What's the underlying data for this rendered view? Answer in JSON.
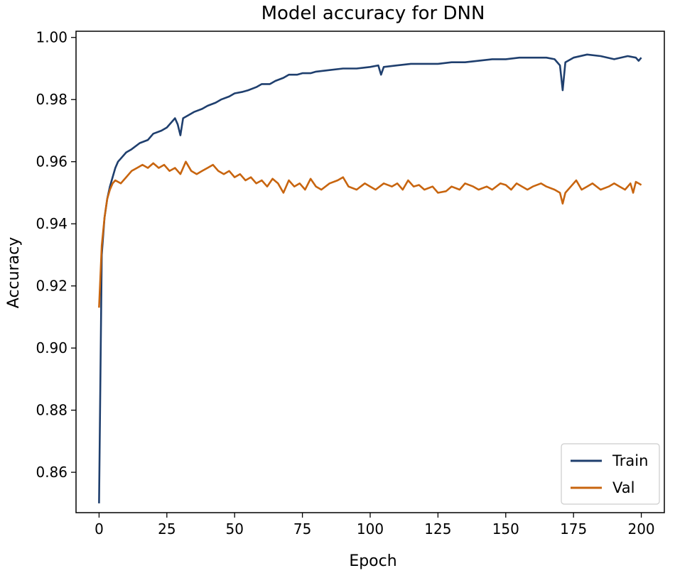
{
  "chart_data": {
    "type": "line",
    "title": "Model accuracy for DNN",
    "xlabel": "Epoch",
    "ylabel": "Accuracy",
    "xlim": [
      -8.5,
      208.5
    ],
    "ylim": [
      0.847,
      1.002
    ],
    "xticks": [
      0,
      25,
      50,
      75,
      100,
      125,
      150,
      175,
      200
    ],
    "yticks": [
      0.86,
      0.88,
      0.9,
      0.92,
      0.94,
      0.96,
      0.98,
      1.0
    ],
    "xtick_labels": [
      "0",
      "25",
      "50",
      "75",
      "100",
      "125",
      "150",
      "175",
      "200"
    ],
    "ytick_labels": [
      "0.86",
      "0.88",
      "0.90",
      "0.92",
      "0.94",
      "0.96",
      "0.98",
      "1.00"
    ],
    "grid": false,
    "legend_position": "bottom-right",
    "series": [
      {
        "name": "Train",
        "color": "#1f3f6e",
        "points": [
          [
            0,
            0.85
          ],
          [
            1,
            0.93
          ],
          [
            2,
            0.942
          ],
          [
            3,
            0.948
          ],
          [
            4,
            0.952
          ],
          [
            5,
            0.955
          ],
          [
            6,
            0.958
          ],
          [
            7,
            0.96
          ],
          [
            8,
            0.961
          ],
          [
            10,
            0.963
          ],
          [
            12,
            0.964
          ],
          [
            15,
            0.966
          ],
          [
            18,
            0.967
          ],
          [
            20,
            0.969
          ],
          [
            23,
            0.97
          ],
          [
            25,
            0.971
          ],
          [
            27,
            0.973
          ],
          [
            28,
            0.974
          ],
          [
            29,
            0.972
          ],
          [
            30,
            0.9685
          ],
          [
            31,
            0.974
          ],
          [
            33,
            0.975
          ],
          [
            35,
            0.976
          ],
          [
            38,
            0.977
          ],
          [
            40,
            0.978
          ],
          [
            43,
            0.979
          ],
          [
            45,
            0.98
          ],
          [
            48,
            0.981
          ],
          [
            50,
            0.982
          ],
          [
            53,
            0.9825
          ],
          [
            55,
            0.983
          ],
          [
            58,
            0.984
          ],
          [
            60,
            0.985
          ],
          [
            63,
            0.985
          ],
          [
            65,
            0.986
          ],
          [
            68,
            0.987
          ],
          [
            70,
            0.988
          ],
          [
            73,
            0.988
          ],
          [
            75,
            0.9885
          ],
          [
            78,
            0.9885
          ],
          [
            80,
            0.989
          ],
          [
            85,
            0.9895
          ],
          [
            90,
            0.99
          ],
          [
            95,
            0.99
          ],
          [
            100,
            0.9905
          ],
          [
            103,
            0.991
          ],
          [
            104,
            0.988
          ],
          [
            105,
            0.9905
          ],
          [
            110,
            0.991
          ],
          [
            115,
            0.9915
          ],
          [
            120,
            0.9915
          ],
          [
            125,
            0.9915
          ],
          [
            130,
            0.992
          ],
          [
            135,
            0.992
          ],
          [
            140,
            0.9925
          ],
          [
            145,
            0.993
          ],
          [
            150,
            0.993
          ],
          [
            155,
            0.9935
          ],
          [
            160,
            0.9935
          ],
          [
            165,
            0.9935
          ],
          [
            168,
            0.993
          ],
          [
            170,
            0.991
          ],
          [
            171,
            0.983
          ],
          [
            172,
            0.992
          ],
          [
            175,
            0.9935
          ],
          [
            180,
            0.9945
          ],
          [
            185,
            0.994
          ],
          [
            190,
            0.993
          ],
          [
            195,
            0.994
          ],
          [
            198,
            0.9935
          ],
          [
            199,
            0.9925
          ],
          [
            200,
            0.9935
          ]
        ]
      },
      {
        "name": "Val",
        "color": "#c8650f",
        "points": [
          [
            0,
            0.913
          ],
          [
            1,
            0.933
          ],
          [
            2,
            0.942
          ],
          [
            3,
            0.948
          ],
          [
            4,
            0.951
          ],
          [
            5,
            0.953
          ],
          [
            6,
            0.954
          ],
          [
            8,
            0.953
          ],
          [
            10,
            0.955
          ],
          [
            12,
            0.957
          ],
          [
            14,
            0.958
          ],
          [
            16,
            0.959
          ],
          [
            18,
            0.958
          ],
          [
            20,
            0.9595
          ],
          [
            22,
            0.958
          ],
          [
            24,
            0.959
          ],
          [
            26,
            0.957
          ],
          [
            28,
            0.958
          ],
          [
            30,
            0.956
          ],
          [
            32,
            0.96
          ],
          [
            34,
            0.957
          ],
          [
            36,
            0.956
          ],
          [
            38,
            0.957
          ],
          [
            40,
            0.958
          ],
          [
            42,
            0.959
          ],
          [
            44,
            0.957
          ],
          [
            46,
            0.956
          ],
          [
            48,
            0.957
          ],
          [
            50,
            0.955
          ],
          [
            52,
            0.956
          ],
          [
            54,
            0.954
          ],
          [
            56,
            0.955
          ],
          [
            58,
            0.953
          ],
          [
            60,
            0.954
          ],
          [
            62,
            0.952
          ],
          [
            64,
            0.9545
          ],
          [
            66,
            0.953
          ],
          [
            68,
            0.95
          ],
          [
            70,
            0.954
          ],
          [
            72,
            0.952
          ],
          [
            74,
            0.953
          ],
          [
            76,
            0.951
          ],
          [
            78,
            0.9545
          ],
          [
            80,
            0.952
          ],
          [
            82,
            0.951
          ],
          [
            85,
            0.953
          ],
          [
            88,
            0.954
          ],
          [
            90,
            0.955
          ],
          [
            92,
            0.952
          ],
          [
            95,
            0.951
          ],
          [
            98,
            0.953
          ],
          [
            100,
            0.952
          ],
          [
            102,
            0.951
          ],
          [
            105,
            0.953
          ],
          [
            108,
            0.952
          ],
          [
            110,
            0.953
          ],
          [
            112,
            0.951
          ],
          [
            114,
            0.954
          ],
          [
            116,
            0.952
          ],
          [
            118,
            0.9525
          ],
          [
            120,
            0.951
          ],
          [
            123,
            0.952
          ],
          [
            125,
            0.95
          ],
          [
            128,
            0.9505
          ],
          [
            130,
            0.952
          ],
          [
            133,
            0.951
          ],
          [
            135,
            0.953
          ],
          [
            138,
            0.952
          ],
          [
            140,
            0.951
          ],
          [
            143,
            0.952
          ],
          [
            145,
            0.951
          ],
          [
            148,
            0.953
          ],
          [
            150,
            0.9525
          ],
          [
            152,
            0.951
          ],
          [
            154,
            0.953
          ],
          [
            156,
            0.952
          ],
          [
            158,
            0.951
          ],
          [
            160,
            0.952
          ],
          [
            163,
            0.953
          ],
          [
            165,
            0.952
          ],
          [
            168,
            0.951
          ],
          [
            170,
            0.95
          ],
          [
            171,
            0.9465
          ],
          [
            172,
            0.95
          ],
          [
            174,
            0.952
          ],
          [
            176,
            0.954
          ],
          [
            178,
            0.951
          ],
          [
            180,
            0.952
          ],
          [
            182,
            0.953
          ],
          [
            185,
            0.951
          ],
          [
            188,
            0.952
          ],
          [
            190,
            0.953
          ],
          [
            192,
            0.952
          ],
          [
            194,
            0.951
          ],
          [
            196,
            0.953
          ],
          [
            197,
            0.95
          ],
          [
            198,
            0.9535
          ],
          [
            199,
            0.953
          ],
          [
            200,
            0.9525
          ]
        ]
      }
    ]
  }
}
